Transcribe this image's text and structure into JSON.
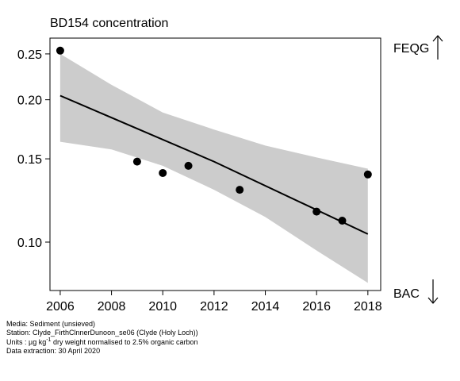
{
  "chart_data": {
    "type": "line",
    "title": "BD154 concentration",
    "x_ticks": [
      2006,
      2008,
      2010,
      2012,
      2014,
      2016,
      2018
    ],
    "y_ticks": [
      0.1,
      0.15,
      0.2,
      0.25
    ],
    "y_tick_labels": [
      "0.10",
      "0.15",
      "0.20",
      "0.25"
    ],
    "y_scale": "log",
    "xlim": [
      2005.6,
      2018.5
    ],
    "ylim": [
      0.079,
      0.27
    ],
    "points": [
      {
        "x": 2006,
        "y": 0.254
      },
      {
        "x": 2009,
        "y": 0.148
      },
      {
        "x": 2010,
        "y": 0.14
      },
      {
        "x": 2011,
        "y": 0.145
      },
      {
        "x": 2013,
        "y": 0.129
      },
      {
        "x": 2016,
        "y": 0.116
      },
      {
        "x": 2017,
        "y": 0.111
      },
      {
        "x": 2018,
        "y": 0.139
      }
    ],
    "trend": [
      {
        "x": 2006,
        "y": 0.204
      },
      {
        "x": 2012,
        "y": 0.148
      },
      {
        "x": 2018,
        "y": 0.104
      }
    ],
    "band_upper": [
      {
        "x": 2006,
        "y": 0.25
      },
      {
        "x": 2008,
        "y": 0.215
      },
      {
        "x": 2010,
        "y": 0.188
      },
      {
        "x": 2012,
        "y": 0.173
      },
      {
        "x": 2014,
        "y": 0.16
      },
      {
        "x": 2016,
        "y": 0.151
      },
      {
        "x": 2018,
        "y": 0.143
      }
    ],
    "band_lower": [
      {
        "x": 2006,
        "y": 0.163
      },
      {
        "x": 2008,
        "y": 0.157
      },
      {
        "x": 2010,
        "y": 0.145
      },
      {
        "x": 2012,
        "y": 0.129
      },
      {
        "x": 2014,
        "y": 0.113
      },
      {
        "x": 2016,
        "y": 0.096
      },
      {
        "x": 2018,
        "y": 0.082
      }
    ],
    "band_color": "#cccccc",
    "line_color": "#000000",
    "point_color": "#000000"
  },
  "labels": {
    "feqg": "FEQG",
    "bac": "BAC",
    "feqg_arrow": "up-arrow-icon",
    "bac_arrow": "down-arrow-icon"
  },
  "footer": {
    "media": "Media: Sediment (unsieved)",
    "station": "Station: Clyde_FirthClnnerDunoon_se06 (Clyde (Holy Loch))",
    "units_prefix": "Units : µg kg",
    "units_sup": "-1",
    "units_suffix": " dry weight normalised to 2.5% organic carbon",
    "extraction": "Data extraction: 30 April 2020"
  }
}
